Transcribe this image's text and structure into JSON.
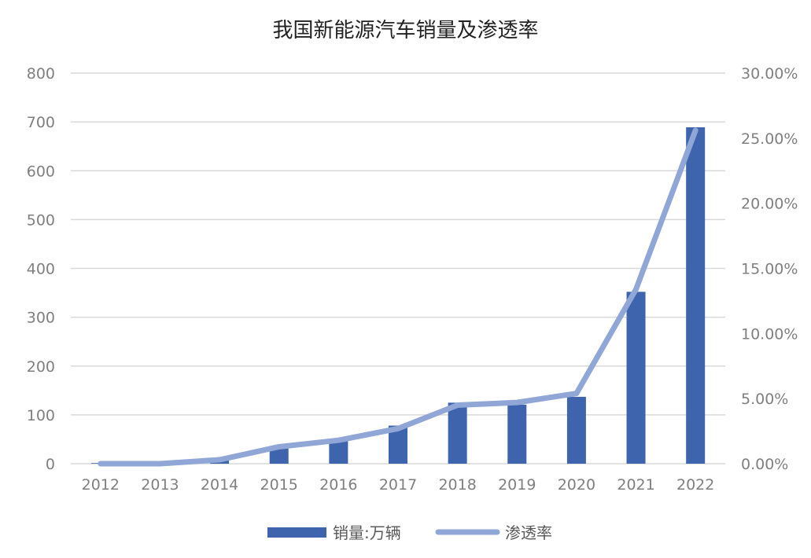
{
  "chart_data": {
    "type": "bar",
    "title": "我国新能源汽车销量及渗透率",
    "categories": [
      "2012",
      "2013",
      "2014",
      "2015",
      "2016",
      "2017",
      "2018",
      "2019",
      "2020",
      "2021",
      "2022"
    ],
    "series": [
      {
        "name": "销量:万辆",
        "type": "bar",
        "axis": "left",
        "color": "#3e64ad",
        "values": [
          1.3,
          1.8,
          7.5,
          33,
          51,
          78,
          125,
          121,
          137,
          352,
          689
        ]
      },
      {
        "name": "渗透率",
        "type": "line",
        "axis": "right",
        "color": "#8fa6d6",
        "values": [
          0.0,
          0.0,
          0.3,
          1.3,
          1.8,
          2.7,
          4.5,
          4.7,
          5.4,
          13.4,
          25.6
        ]
      }
    ],
    "left_axis": {
      "ylim": [
        0,
        800
      ],
      "ticks": [
        "0",
        "100",
        "200",
        "300",
        "400",
        "500",
        "600",
        "700",
        "800"
      ]
    },
    "right_axis": {
      "ylim": [
        0,
        30
      ],
      "ticks": [
        "0.00%",
        "5.00%",
        "10.00%",
        "15.00%",
        "20.00%",
        "25.00%",
        "30.00%"
      ]
    },
    "grid": true,
    "legend": "bottom"
  }
}
